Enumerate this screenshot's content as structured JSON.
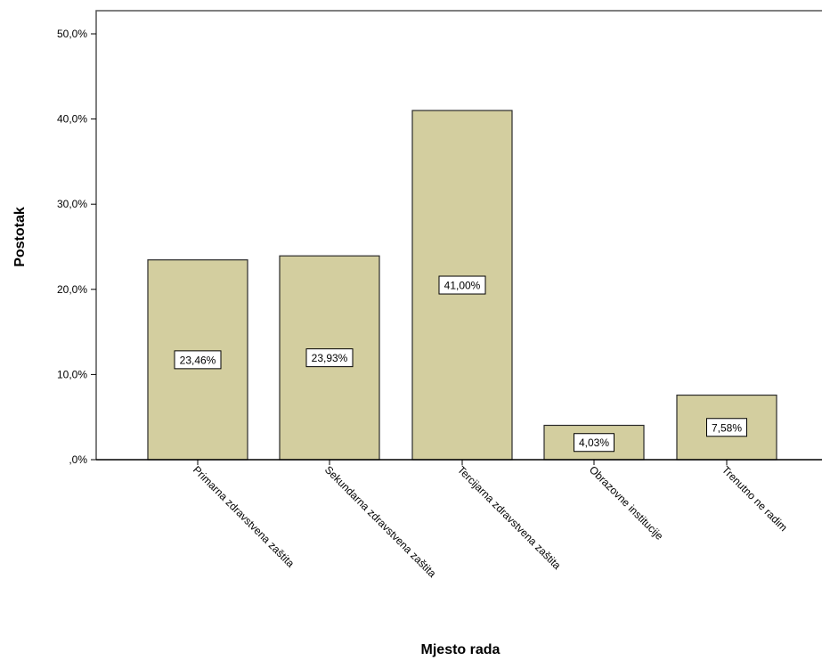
{
  "chart_data": {
    "type": "bar",
    "xlabel": "Mjesto rada",
    "ylabel": "Postotak",
    "ylim": [
      0,
      50
    ],
    "yticks": [
      0,
      10,
      20,
      30,
      40,
      50
    ],
    "ytick_labels": [
      ",0%",
      "10,0%",
      "20,0%",
      "30,0%",
      "40,0%",
      "50,0%"
    ],
    "categories": [
      "Primarna zdravstvena zaštita",
      "Sekundarna zdravstvena zaštita",
      "Tercijarna zdravstvena zaštita",
      "Obrazovne institucije",
      "Trenutno ne radim"
    ],
    "values": [
      23.46,
      23.93,
      41.0,
      4.03,
      7.58
    ],
    "data_labels": [
      "23,46%",
      "23,93%",
      "41,00%",
      "4,03%",
      "7,58%"
    ],
    "bar_color": "#d3ce9f",
    "grid": false,
    "legend": "none"
  }
}
